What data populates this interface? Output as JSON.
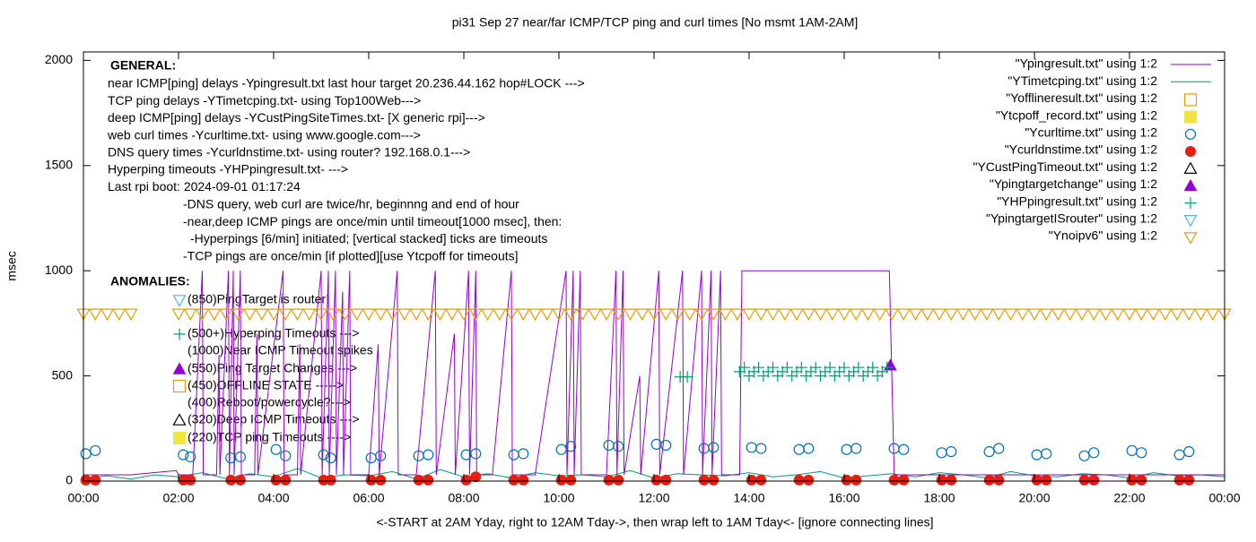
{
  "chart_data": {
    "type": "line",
    "title": "pi31 Sep 27  near/far ICMP/TCP ping and curl times [No msmt 1AM-2AM]",
    "x_label": "<-START at 2AM Yday, right to 12AM Tday->, then wrap left to 1AM Tday<- [ignore connecting lines]",
    "y_label": "msec",
    "xlim": [
      0,
      24
    ],
    "xticks": [
      {
        "value": 0,
        "label": "00:00"
      },
      {
        "value": 2,
        "label": "02:00"
      },
      {
        "value": 4,
        "label": "04:00"
      },
      {
        "value": 6,
        "label": "06:00"
      },
      {
        "value": 8,
        "label": "08:00"
      },
      {
        "value": 10,
        "label": "10:00"
      },
      {
        "value": 12,
        "label": "12:00"
      },
      {
        "value": 14,
        "label": "14:00"
      },
      {
        "value": 16,
        "label": "16:00"
      },
      {
        "value": 18,
        "label": "18:00"
      },
      {
        "value": 20,
        "label": "20:00"
      },
      {
        "value": 22,
        "label": "22:00"
      },
      {
        "value": 24,
        "label": "00:00"
      }
    ],
    "ylim": [
      0,
      2040
    ],
    "yticks": [
      0,
      500,
      1000,
      1500,
      2000
    ],
    "annotations": {
      "general_heading": "GENERAL:",
      "general_lines": [
        "near ICMP[ping] delays -Ypingresult.txt last hour target 20.236.44.162 hop#LOCK --->",
        "TCP ping delays -YTimetcping.txt- using Top100Web--->",
        "deep ICMP[ping] delays -YCustPingSiteTimes.txt- [X generic rpi]--->",
        "web curl times -Ycurltime.txt- using www.google.com--->",
        "DNS query times -Ycurldnstime.txt- using router? 192.168.0.1--->",
        "Hyperping timeouts -YHPpingresult.txt- --->",
        "Last rpi boot: 2024-09-01 01:17:24"
      ],
      "notes": [
        "-DNS query, web curl are twice/hr, beginnng and end of hour",
        "-near,deep ICMP pings are once/min until timeout[1000 msec], then:",
        "-Hyperpings [6/min] initiated; [vertical stacked] ticks are timeouts",
        "-TCP pings are once/min [if plotted][use Ytcpoff for timeouts]"
      ],
      "anomalies_heading": "ANOMALIES:",
      "anomalies": [
        "(850)PingTarget is router!",
        "(500+)Hyperping Timeouts --->",
        "(1000)Near ICMP Timeout spikes",
        "(550)Ping Target Changes --->",
        "(450)OFFLINE STATE ----->",
        "(400)Reboot/powercycle?--->",
        "(320)Deep ICMP Timeouts --->",
        "(220)TCP ping Timeouts ---->"
      ]
    },
    "series": [
      {
        "name": "\"Ypingresult.txt\" using 1:2",
        "color": "#9400d3",
        "marker": "line",
        "x": [
          0,
          1.0,
          1.95,
          2.0,
          2.3,
          2.5,
          2.52,
          2.8,
          2.85,
          2.87,
          3.05,
          3.07,
          3.15,
          3.17,
          3.3,
          3.32,
          3.6,
          3.65,
          3.67,
          4.2,
          4.22,
          4.5,
          4.55,
          4.57,
          5.0,
          5.02,
          5.15,
          5.17,
          5.3,
          5.32,
          5.45,
          5.47,
          5.6,
          5.62,
          6.0,
          6.2,
          6.22,
          6.6,
          6.62,
          7.0,
          7.4,
          7.42,
          7.8,
          7.82,
          8.1,
          8.12,
          8.25,
          8.27,
          8.6,
          9.0,
          9.02,
          9.5,
          10.15,
          10.17,
          10.3,
          10.32,
          10.45,
          10.47,
          11.0,
          11.2,
          11.22,
          11.35,
          11.37,
          11.7,
          11.72,
          12.1,
          12.12,
          12.6,
          12.62,
          13.0,
          13.02,
          13.2,
          13.22,
          13.4,
          13.42,
          13.8,
          13.85,
          16.95,
          17.05,
          18.0,
          20.0,
          22.0,
          24.0
        ],
        "values": [
          30,
          30,
          50,
          30,
          30,
          1000,
          30,
          30,
          600,
          30,
          1000,
          30,
          1000,
          30,
          1000,
          30,
          30,
          700,
          30,
          1000,
          30,
          30,
          650,
          30,
          1000,
          30,
          1000,
          30,
          1000,
          30,
          900,
          30,
          1000,
          30,
          30,
          650,
          30,
          1000,
          30,
          30,
          1000,
          30,
          700,
          30,
          1000,
          30,
          1000,
          30,
          30,
          1000,
          30,
          30,
          1000,
          30,
          1000,
          30,
          1000,
          30,
          30,
          1000,
          30,
          1000,
          30,
          500,
          30,
          1000,
          30,
          1000,
          30,
          1000,
          30,
          1000,
          30,
          1000,
          30,
          30,
          1000,
          1000,
          30,
          30,
          30,
          30,
          30
        ]
      },
      {
        "name": "\"YTimetcping.txt\" using 1:2",
        "color": "#009e73",
        "marker": "line",
        "x": [
          0,
          0.5,
          1,
          1.5,
          2,
          2.5,
          3,
          3.5,
          4,
          4.5,
          5,
          5.5,
          6,
          6.5,
          7,
          7.5,
          8,
          8.5,
          9,
          9.5,
          10,
          10.5,
          11,
          11.5,
          12,
          12.5,
          13,
          13.5,
          14,
          14.5,
          15,
          15.5,
          16,
          16.5,
          17,
          17.5,
          18,
          18.5,
          19,
          19.5,
          20,
          20.5,
          21,
          21.5,
          22,
          22.5,
          23,
          23.5,
          24
        ],
        "values": [
          15,
          25,
          10,
          30,
          20,
          40,
          12,
          35,
          20,
          60,
          15,
          30,
          25,
          45,
          10,
          55,
          20,
          35,
          15,
          40,
          25,
          30,
          20,
          50,
          15,
          35,
          30,
          25,
          40,
          20,
          30,
          45,
          15,
          25,
          35,
          20,
          40,
          30,
          15,
          45,
          25,
          20,
          35,
          30,
          15,
          40,
          25,
          30,
          20
        ]
      },
      {
        "name": "\"Yofflineresult.txt\" using 1:2",
        "color": "#e69f00",
        "marker": "square-open",
        "x": [],
        "values": []
      },
      {
        "name": "\"Ytcpoff_record.txt\" using 1:2",
        "color": "#f0e442",
        "marker": "square-filled",
        "x": [],
        "values": []
      },
      {
        "name": "\"Ycurltime.txt\" using 1:2",
        "color": "#0072b2",
        "marker": "circle-open",
        "x": [
          0.05,
          0.25,
          2.1,
          2.25,
          3.1,
          3.3,
          4.05,
          4.25,
          5.05,
          5.2,
          6.05,
          6.25,
          7.05,
          7.25,
          8.05,
          8.25,
          9.05,
          9.25,
          10.05,
          10.25,
          11.05,
          11.25,
          12.05,
          12.25,
          13.05,
          13.25,
          14.05,
          14.25,
          15.05,
          15.25,
          16.05,
          16.25,
          17.05,
          17.25,
          18.05,
          18.25,
          19.05,
          19.25,
          20.05,
          20.25,
          21.05,
          21.25,
          22.05,
          22.25,
          23.05,
          23.25
        ],
        "values": [
          130,
          145,
          125,
          115,
          110,
          115,
          150,
          120,
          125,
          110,
          110,
          120,
          120,
          125,
          125,
          130,
          125,
          130,
          150,
          165,
          170,
          165,
          175,
          170,
          155,
          160,
          160,
          155,
          150,
          155,
          150,
          155,
          155,
          150,
          135,
          140,
          140,
          155,
          125,
          130,
          120,
          135,
          145,
          135,
          125,
          140
        ]
      },
      {
        "name": "\"Ycurldnstime.txt\" using 1:2",
        "color": "#e51e10",
        "marker": "circle-filled",
        "x": [
          0.05,
          0.25,
          2.1,
          2.25,
          3.1,
          3.3,
          4.05,
          4.25,
          5.05,
          5.2,
          6.05,
          6.25,
          7.05,
          7.25,
          8.05,
          8.25,
          9.05,
          9.25,
          10.05,
          10.25,
          11.05,
          11.25,
          12.05,
          12.25,
          13.05,
          13.25,
          14.05,
          14.25,
          15.05,
          15.25,
          16.05,
          16.25,
          17.05,
          17.25,
          18.05,
          18.25,
          19.05,
          19.25,
          20.05,
          20.25,
          21.05,
          21.25,
          22.05,
          22.25,
          23.05,
          23.25
        ],
        "values": [
          5,
          5,
          5,
          5,
          5,
          5,
          5,
          5,
          5,
          5,
          5,
          5,
          5,
          5,
          5,
          20,
          5,
          5,
          5,
          5,
          5,
          5,
          5,
          5,
          5,
          5,
          5,
          5,
          5,
          5,
          5,
          5,
          5,
          5,
          5,
          5,
          5,
          5,
          5,
          5,
          5,
          5,
          5,
          5,
          5,
          5
        ]
      },
      {
        "name": "\"YCustPingTimeout.txt\" using 1:2",
        "color": "#000000",
        "marker": "triangle-open",
        "x": [],
        "values": []
      },
      {
        "name": "\"Ypingtargetchange\" using 1:2",
        "color": "#9400d3",
        "marker": "triangle-filled",
        "x": [
          16.97
        ],
        "values": [
          550
        ]
      },
      {
        "name": "\"YHPpingresult.txt\" using 1:2",
        "color": "#009e73",
        "marker": "plus",
        "x": [
          12.55,
          12.7,
          13.8,
          13.9,
          14.0,
          14.1,
          14.2,
          14.3,
          14.4,
          14.5,
          14.6,
          14.7,
          14.8,
          14.9,
          15.0,
          15.1,
          15.2,
          15.3,
          15.4,
          15.5,
          15.6,
          15.7,
          15.8,
          15.9,
          16.0,
          16.1,
          16.2,
          16.3,
          16.4,
          16.5,
          16.6,
          16.7,
          16.8,
          16.9
        ],
        "values": [
          495,
          495,
          520,
          540,
          500,
          520,
          540,
          500,
          520,
          540,
          500,
          520,
          540,
          500,
          520,
          540,
          500,
          520,
          540,
          500,
          520,
          540,
          500,
          520,
          540,
          500,
          520,
          540,
          500,
          520,
          540,
          500,
          520,
          540
        ]
      },
      {
        "name": "\"YpingtargetISrouter\" using 1:2",
        "color": "#56b4e9",
        "marker": "triangle-down-open",
        "x": [],
        "values": []
      },
      {
        "name": "\"Ynoipv6\" using 1:2",
        "color": "#e69f00",
        "marker": "triangle-down-open",
        "x": [
          0,
          0.25,
          0.5,
          0.75,
          1.0,
          2,
          2.25,
          2.5,
          2.75,
          3,
          3.25,
          3.5,
          3.75,
          4,
          4.25,
          4.5,
          4.75,
          5,
          5.25,
          5.5,
          5.75,
          6,
          6.25,
          6.5,
          6.75,
          7,
          7.25,
          7.5,
          7.75,
          8,
          8.25,
          8.5,
          8.75,
          9,
          9.25,
          9.5,
          9.75,
          10,
          10.25,
          10.5,
          10.75,
          11,
          11.25,
          11.5,
          11.75,
          12,
          12.25,
          12.5,
          12.75,
          13,
          13.25,
          13.5,
          13.75,
          14,
          14.25,
          14.5,
          14.75,
          15,
          15.25,
          15.5,
          15.75,
          16,
          16.25,
          16.5,
          16.75,
          17,
          17.25,
          17.5,
          17.75,
          18,
          18.25,
          18.5,
          18.75,
          19,
          19.25,
          19.5,
          19.75,
          20,
          20.25,
          20.5,
          20.75,
          21,
          21.25,
          21.5,
          21.75,
          22,
          22.25,
          22.5,
          22.75,
          23,
          23.25,
          23.5,
          23.75,
          24
        ],
        "values": [
          795,
          795,
          795,
          795,
          795,
          795,
          795,
          795,
          795,
          795,
          795,
          795,
          795,
          795,
          795,
          795,
          795,
          795,
          795,
          795,
          795,
          795,
          795,
          795,
          795,
          795,
          795,
          795,
          795,
          795,
          795,
          795,
          795,
          795,
          795,
          795,
          795,
          795,
          795,
          795,
          795,
          795,
          795,
          795,
          795,
          795,
          795,
          795,
          795,
          795,
          795,
          795,
          795,
          795,
          795,
          795,
          795,
          795,
          795,
          795,
          795,
          795,
          795,
          795,
          795,
          795,
          795,
          795,
          795,
          795,
          795,
          795,
          795,
          795,
          795,
          795,
          795,
          795,
          795,
          795,
          795,
          795,
          795,
          795,
          795,
          795,
          795,
          795,
          795,
          795,
          795,
          795,
          795,
          795
        ]
      }
    ]
  }
}
